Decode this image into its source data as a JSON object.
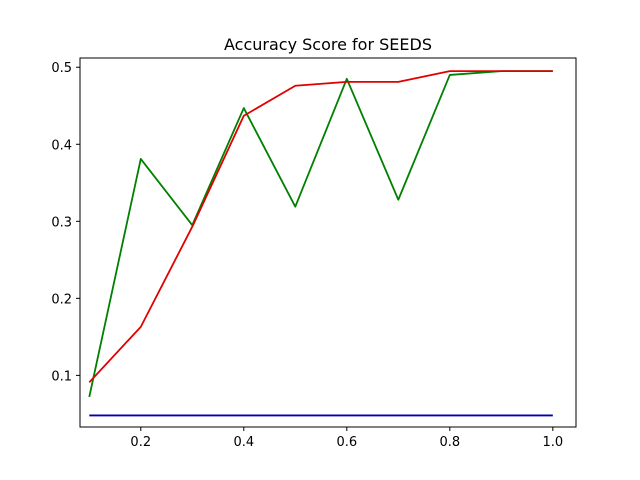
{
  "chart_data": {
    "type": "line",
    "title": "Accuracy Score for SEEDS",
    "xlabel": "",
    "ylabel": "",
    "xlim": [
      0.082,
      1.045
    ],
    "ylim": [
      0.033,
      0.512
    ],
    "x_ticks": [
      0.2,
      0.4,
      0.6,
      0.8,
      1.0
    ],
    "x_tick_labels": [
      "0.2",
      "0.4",
      "0.6",
      "0.8",
      "1.0"
    ],
    "y_ticks": [
      0.1,
      0.2,
      0.3,
      0.4,
      0.5
    ],
    "y_tick_labels": [
      "0.1",
      "0.2",
      "0.3",
      "0.4",
      "0.5"
    ],
    "grid": false,
    "x": [
      0.1,
      0.2,
      0.3,
      0.4,
      0.5,
      0.6,
      0.7,
      0.8,
      0.9,
      1.0
    ],
    "series": [
      {
        "color": "#0000b0",
        "values": [
          0.048,
          0.048,
          0.048,
          0.048,
          0.048,
          0.048,
          0.048,
          0.048,
          0.048,
          0.048
        ]
      },
      {
        "color": "#008000",
        "values": [
          0.072,
          0.381,
          0.295,
          0.447,
          0.319,
          0.485,
          0.328,
          0.49,
          0.495,
          0.495
        ]
      },
      {
        "color": "#e00000",
        "values": [
          0.091,
          0.163,
          0.293,
          0.437,
          0.476,
          0.481,
          0.481,
          0.495,
          0.495,
          0.495
        ]
      }
    ]
  }
}
